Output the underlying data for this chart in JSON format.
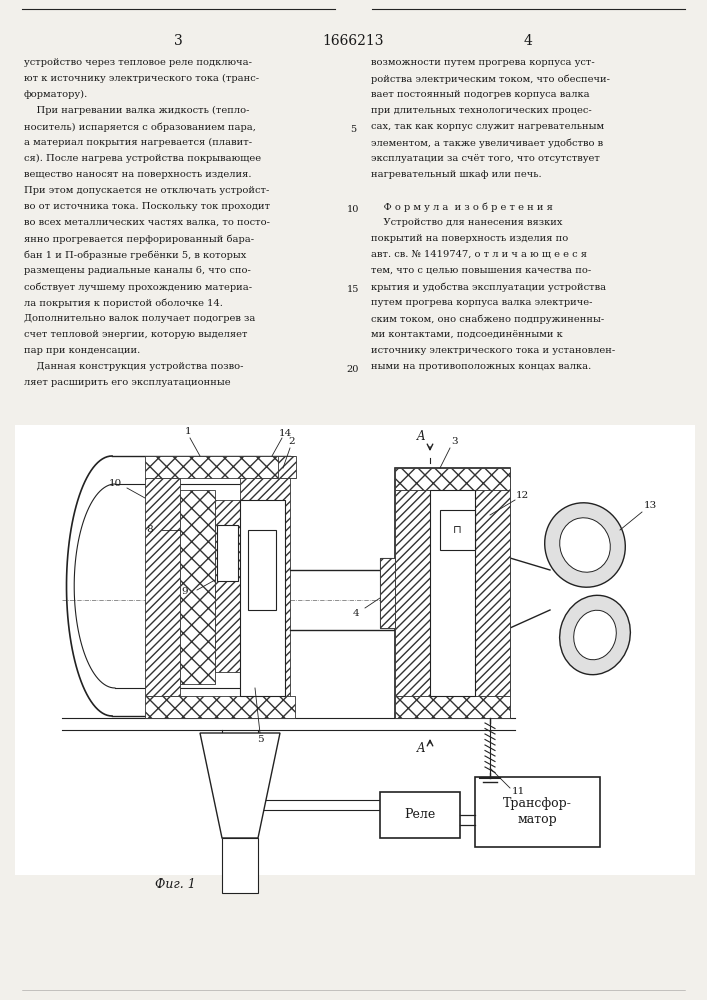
{
  "page_width": 7.07,
  "page_height": 10.0,
  "bg_color": "#f2f0eb",
  "text_color": "#1a1a1a",
  "border_color": "#222222",
  "patent_number": "1666213",
  "page_num_left": "3",
  "page_num_right": "4",
  "left_col_lines": [
    "устройство через тепловое реле подключа-",
    "ют к источнику электрического тока (транс-",
    "форматору).",
    "    При нагревании валка жидкость (тепло-",
    "носитель) испаряется с образованием пара,",
    "а материал покрытия нагревается (плавит-",
    "ся). После нагрева устройства покрывающее",
    "вещество наносят на поверхность изделия.",
    "При этом допускается не отключать устройст-",
    "во от источника тока. Поскольку ток проходит",
    "во всех металлических частях валка, то посто-",
    "янно прогревается перфорированный бара-",
    "бан 1 и П-образные гребёнки 5, в которых",
    "размещены радиальные каналы 6, что спо-",
    "собствует лучшему прохождению материа-",
    "ла покрытия к пористой оболочке 14.",
    "Дополнительно валок получает подогрев за",
    "счет тепловой энергии, которую выделяет",
    "пар при конденсации.",
    "    Данная конструкция устройства позво-",
    "ляет расширить его эксплуатационные"
  ],
  "right_col_lines": [
    "возможности путем прогрева корпуса уст-",
    "ройства электрическим током, что обеспечи-",
    "вает постоянный подогрев корпуса валка",
    "при длительных технологических процес-",
    "сах, так как корпус служит нагревательным",
    "элементом, а также увеличивает удобство в",
    "эксплуатации за счёт того, что отсутствует",
    "нагревательный шкаф или печь.",
    "",
    "    Ф о р м у л а  и з о б р е т е н и я",
    "    Устройство для нанесения вязких",
    "покрытий на поверхность изделия по",
    "авт. св. № 1419747, о т л и ч а ю щ е е с я",
    "тем, что с целью повышения качества по-",
    "крытия и удобства эксплуатации устройства",
    "путем прогрева корпуса валка электриче-",
    "ским током, оно снабжено подпружиненны-",
    "ми контактами, подсоединёнными к",
    "источнику электрического тока и установлен-",
    "ными на противоположных концах валка."
  ],
  "fig_caption": "Фиг. 1",
  "relay_label": "Реле",
  "transformer_label_1": "Трансфор-",
  "transformer_label_2": "матор"
}
